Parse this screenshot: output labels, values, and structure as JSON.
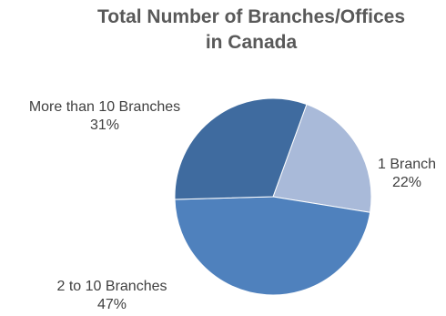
{
  "chart_data": {
    "type": "pie",
    "title_lines": [
      "Total Number of Branches/Offices",
      "in Canada"
    ],
    "slices": [
      {
        "label": "1 Branch",
        "value": 22,
        "value_label": "22%",
        "color": "#a9bad9"
      },
      {
        "label": "2 to 10 Branches",
        "value": 47,
        "value_label": "47%",
        "color": "#4f81bd"
      },
      {
        "label": "More than 10 Branches",
        "value": 31,
        "value_label": "31%",
        "color": "#3f6b9f"
      }
    ],
    "legend": "none",
    "start": "top-right, clockwise"
  }
}
